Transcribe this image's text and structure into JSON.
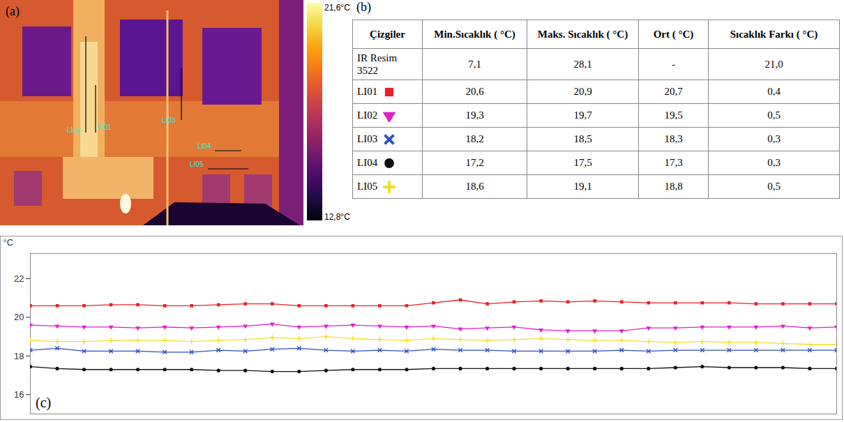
{
  "image": {
    "label": "(a)",
    "lines": [
      "LI01",
      "LI02",
      "LI03",
      "LI04",
      "LI05"
    ],
    "colorbar": {
      "max": {
        "value": 21.6,
        "label": "21,6°C"
      },
      "min": {
        "value": 12.8,
        "label": "12,8°C"
      }
    }
  },
  "table": {
    "label": "(b)",
    "header": [
      "Çizgiler",
      "Min.Sıcaklık ( °C)",
      "Maks. Sıcaklık ( °C)",
      "Ort ( °C)",
      "Sıcaklık Farkı ( °C)"
    ],
    "rows": [
      {
        "name": "IR Resim 3522",
        "cells": [
          "7,1",
          "28,1",
          "-",
          "21,0"
        ]
      },
      {
        "name": "LI01",
        "marker": "square",
        "color": "#e8202a",
        "cells": [
          "20,6",
          "20,9",
          "20,7",
          "0,4"
        ]
      },
      {
        "name": "LI02",
        "marker": "triangle-down",
        "color": "#e020c8",
        "cells": [
          "19,3",
          "19,7",
          "19,5",
          "0,5"
        ]
      },
      {
        "name": "LI03",
        "marker": "x",
        "color": "#3050c0",
        "cells": [
          "18,2",
          "18,5",
          "18,3",
          "0,3"
        ]
      },
      {
        "name": "LI04",
        "marker": "circle",
        "color": "#111111",
        "cells": [
          "17,2",
          "17,5",
          "17,3",
          "0,3"
        ]
      },
      {
        "name": "LI05",
        "marker": "plus",
        "color": "#f2e030",
        "cells": [
          "18,6",
          "19,1",
          "18,8",
          "0,5"
        ]
      }
    ]
  },
  "chart_data": {
    "type": "line",
    "annotations": [
      "(c)"
    ],
    "y_label": "°C",
    "x": [
      0,
      1,
      2,
      3,
      4,
      5,
      6,
      7,
      8,
      9,
      10,
      11,
      12,
      13,
      14,
      15,
      16,
      17,
      18,
      19,
      20,
      21,
      22,
      23,
      24,
      25,
      26,
      27,
      28,
      29,
      30
    ],
    "xlim": [
      0,
      30
    ],
    "ylim": [
      15,
      23.3
    ],
    "yticks": [
      16,
      18,
      20,
      22
    ],
    "tick_labels": "y",
    "series": [
      {
        "color": "#e8202a",
        "marker": "square",
        "values": [
          20.6,
          20.6,
          20.6,
          20.65,
          20.65,
          20.6,
          20.6,
          20.65,
          20.7,
          20.7,
          20.6,
          20.6,
          20.6,
          20.6,
          20.6,
          20.75,
          20.9,
          20.7,
          20.8,
          20.85,
          20.8,
          20.85,
          20.8,
          20.75,
          20.75,
          20.75,
          20.75,
          20.7,
          20.7,
          20.7,
          20.7
        ]
      },
      {
        "color": "#e020c8",
        "marker": "triangle-down",
        "values": [
          19.6,
          19.55,
          19.5,
          19.5,
          19.45,
          19.5,
          19.45,
          19.5,
          19.55,
          19.65,
          19.5,
          19.55,
          19.6,
          19.55,
          19.5,
          19.55,
          19.4,
          19.45,
          19.5,
          19.35,
          19.3,
          19.3,
          19.3,
          19.45,
          19.45,
          19.5,
          19.5,
          19.5,
          19.55,
          19.45,
          19.5
        ]
      },
      {
        "color": "#3050c0",
        "marker": "x",
        "values": [
          18.3,
          18.4,
          18.25,
          18.25,
          18.25,
          18.2,
          18.2,
          18.3,
          18.25,
          18.35,
          18.4,
          18.3,
          18.25,
          18.3,
          18.25,
          18.35,
          18.3,
          18.3,
          18.25,
          18.25,
          18.25,
          18.25,
          18.3,
          18.25,
          18.3,
          18.3,
          18.3,
          18.3,
          18.3,
          18.3,
          18.3
        ]
      },
      {
        "color": "#111111",
        "marker": "circle",
        "values": [
          17.45,
          17.35,
          17.3,
          17.3,
          17.3,
          17.3,
          17.3,
          17.25,
          17.25,
          17.2,
          17.2,
          17.25,
          17.3,
          17.3,
          17.3,
          17.35,
          17.35,
          17.35,
          17.35,
          17.35,
          17.35,
          17.35,
          17.35,
          17.35,
          17.4,
          17.45,
          17.4,
          17.4,
          17.4,
          17.35,
          17.35
        ]
      },
      {
        "color": "#f2e030",
        "marker": "plus",
        "values": [
          18.8,
          18.75,
          18.75,
          18.8,
          18.8,
          18.8,
          18.75,
          18.8,
          18.85,
          18.95,
          18.9,
          19.0,
          18.9,
          18.85,
          18.8,
          18.9,
          18.85,
          18.8,
          18.85,
          18.9,
          18.85,
          18.8,
          18.8,
          18.75,
          18.7,
          18.75,
          18.7,
          18.7,
          18.65,
          18.6,
          18.6
        ]
      }
    ]
  }
}
